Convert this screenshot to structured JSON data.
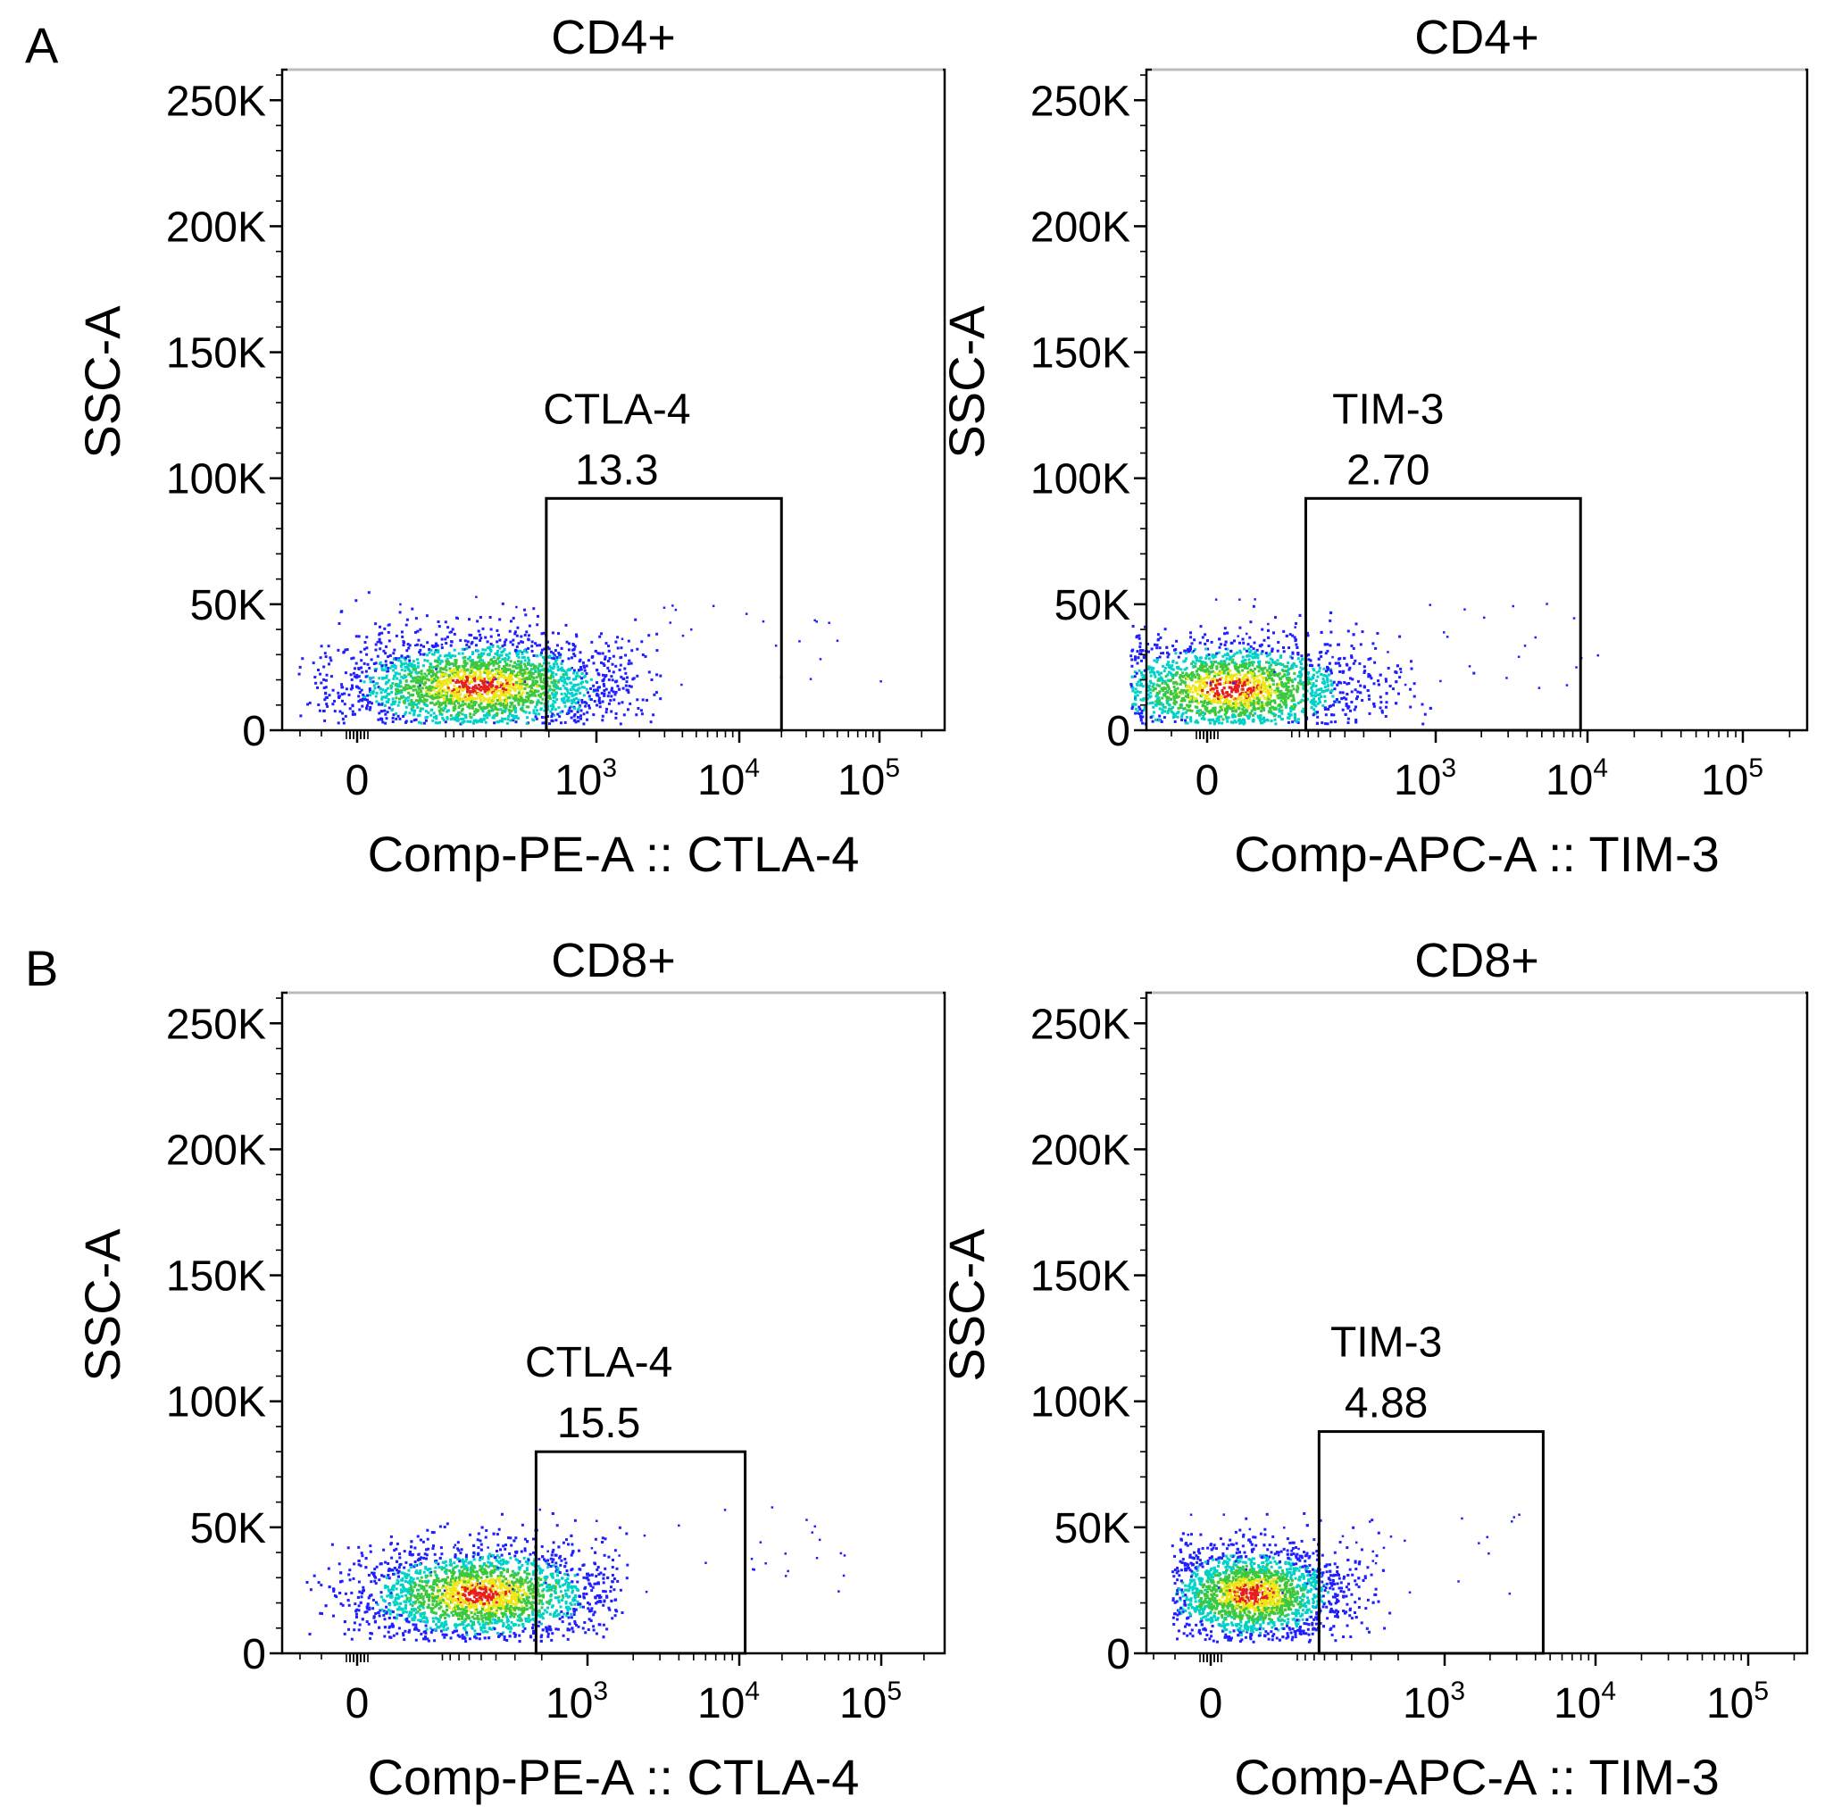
{
  "colors": {
    "density_low": "#1f1fff",
    "density_mid": "#00d2c8",
    "density_mid2": "#3cc83c",
    "density_high": "#f0e614",
    "density_peak": "#e61e1e",
    "gate_stroke": "#000000"
  },
  "chart_data": [
    {
      "type": "scatter",
      "panel_letter": "A",
      "title": "CD4+",
      "xlabel": "Comp-PE-A :: CTLA-4",
      "ylabel": "SSC-A",
      "x_scale": "biexponential",
      "x_ticks": [
        {
          "base": "0",
          "exp": ""
        },
        {
          "base": "10",
          "exp": "3"
        },
        {
          "base": "10",
          "exp": "4"
        },
        {
          "base": "10",
          "exp": "5"
        }
      ],
      "y_ticks": [
        "0",
        "50K",
        "100K",
        "150K",
        "200K",
        "250K"
      ],
      "ylim": [
        0,
        262144
      ],
      "gate": {
        "name": "CTLA-4",
        "percent": "13.3",
        "x_range": [
          600,
          20000
        ],
        "y_range": [
          0,
          92000
        ]
      },
      "population": {
        "center_x": 300,
        "center_y": 18000,
        "x_extent": [
          -150,
          2800
        ],
        "y_extent": [
          3000,
          68000
        ]
      }
    },
    {
      "type": "scatter",
      "panel_letter": "",
      "title": "CD4+",
      "xlabel": "Comp-APC-A :: TIM-3",
      "ylabel": "SSC-A",
      "x_scale": "biexponential",
      "x_ticks": [
        {
          "base": "0",
          "exp": ""
        },
        {
          "base": "10",
          "exp": "3"
        },
        {
          "base": "10",
          "exp": "4"
        },
        {
          "base": "10",
          "exp": "5"
        }
      ],
      "y_ticks": [
        "0",
        "50K",
        "100K",
        "150K",
        "200K",
        "250K"
      ],
      "ylim": [
        0,
        262144
      ],
      "gate": {
        "name": "TIM-3",
        "percent": "2.70",
        "x_range": [
          250,
          9000
        ],
        "y_range": [
          0,
          92000
        ]
      },
      "population": {
        "center_x": 60,
        "center_y": 17000,
        "x_extent": [
          -200,
          1800
        ],
        "y_extent": [
          3000,
          68000
        ]
      }
    },
    {
      "type": "scatter",
      "panel_letter": "B",
      "title": "CD8+",
      "xlabel": "Comp-PE-A :: CTLA-4",
      "ylabel": "SSC-A",
      "x_scale": "biexponential",
      "x_ticks": [
        {
          "base": "0",
          "exp": ""
        },
        {
          "base": "10",
          "exp": "3"
        },
        {
          "base": "10",
          "exp": "4"
        },
        {
          "base": "10",
          "exp": "5"
        }
      ],
      "y_ticks": [
        "0",
        "50K",
        "100K",
        "150K",
        "200K",
        "250K"
      ],
      "ylim": [
        0,
        262144
      ],
      "gate": {
        "name": "CTLA-4",
        "percent": "15.5",
        "x_range": [
          580,
          11000
        ],
        "y_range": [
          0,
          80000
        ]
      },
      "population": {
        "center_x": 320,
        "center_y": 24000,
        "x_extent": [
          -150,
          1800
        ],
        "y_extent": [
          5000,
          68000
        ]
      }
    },
    {
      "type": "scatter",
      "panel_letter": "",
      "title": "CD8+",
      "xlabel": "Comp-APC-A :: TIM-3",
      "ylabel": "SSC-A",
      "x_scale": "biexponential",
      "x_ticks": [
        {
          "base": "0",
          "exp": ""
        },
        {
          "base": "10",
          "exp": "3"
        },
        {
          "base": "10",
          "exp": "4"
        },
        {
          "base": "10",
          "exp": "5"
        }
      ],
      "y_ticks": [
        "0",
        "50K",
        "100K",
        "150K",
        "200K",
        "250K"
      ],
      "ylim": [
        0,
        262144
      ],
      "gate": {
        "name": "TIM-3",
        "percent": "4.88",
        "x_range": [
          270,
          4500
        ],
        "y_range": [
          0,
          88000
        ]
      },
      "population": {
        "center_x": 100,
        "center_y": 24000,
        "x_extent": [
          -100,
          700
        ],
        "y_extent": [
          5000,
          68000
        ]
      }
    }
  ]
}
